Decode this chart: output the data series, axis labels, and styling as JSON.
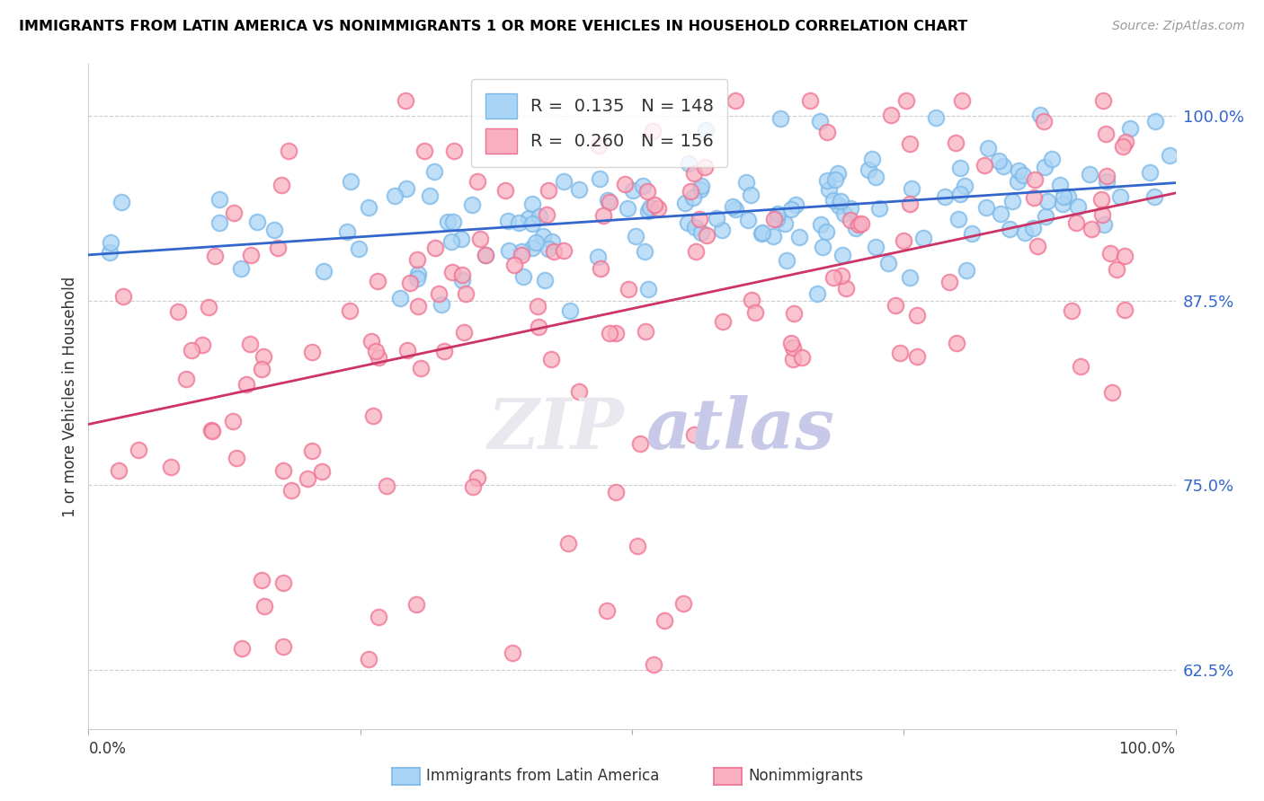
{
  "title": "IMMIGRANTS FROM LATIN AMERICA VS NONIMMIGRANTS 1 OR MORE VEHICLES IN HOUSEHOLD CORRELATION CHART",
  "source": "Source: ZipAtlas.com",
  "ylabel": "1 or more Vehicles in Household",
  "legend_label_blue": "Immigrants from Latin America",
  "legend_label_pink": "Nonimmigrants",
  "R_blue": 0.135,
  "N_blue": 148,
  "R_pink": 0.26,
  "N_pink": 156,
  "blue_color": "#7ab8e8",
  "pink_color": "#f07090",
  "blue_fill": "#aad4f5",
  "pink_fill": "#f8b0c0",
  "blue_line_color": "#3366cc",
  "pink_line_color": "#cc3366",
  "right_ytick_labels": [
    "62.5%",
    "75.0%",
    "87.5%",
    "100.0%"
  ],
  "right_ytick_values": [
    0.625,
    0.75,
    0.875,
    1.0
  ],
  "xmin": 0.0,
  "xmax": 1.0,
  "ymin": 0.585,
  "ymax": 1.035,
  "blue_intercept": 0.91,
  "blue_slope": 0.042,
  "pink_intercept": 0.845,
  "pink_slope": 0.095,
  "seed_blue": 42,
  "seed_pink": 99,
  "n_blue": 148,
  "n_pink": 156
}
